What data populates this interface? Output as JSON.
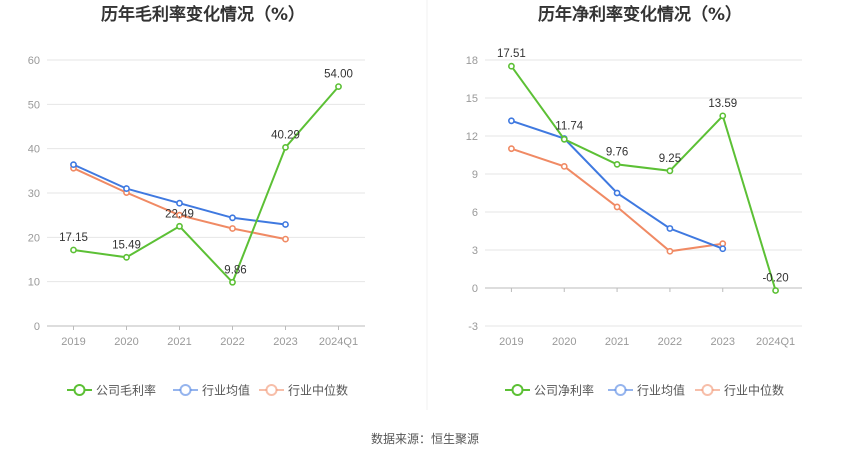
{
  "source": "数据来源：恒生聚源",
  "colors": {
    "company": "#5cc035",
    "industry_avg": "#3f79e0",
    "industry_median": "#f08a64",
    "grid": "#e6e6e6",
    "axis": "#999999"
  },
  "chart_data": [
    {
      "type": "line",
      "title": "历年毛利率变化情况（%）",
      "categories": [
        "2019",
        "2020",
        "2021",
        "2022",
        "2023",
        "2024Q1"
      ],
      "yticks": [
        "0",
        "10",
        "20",
        "30",
        "40",
        "50",
        "60"
      ],
      "ylim": [
        0,
        60
      ],
      "grid": true,
      "legend_position": "bottom",
      "series": [
        {
          "name": "公司毛利率",
          "key": "company",
          "values": [
            17.15,
            15.49,
            22.49,
            9.86,
            40.29,
            54.0
          ],
          "labels": [
            "17.15",
            "15.49",
            "22.49",
            "9.86",
            "40.29",
            "54.00"
          ]
        },
        {
          "name": "行业均值",
          "key": "industry_avg",
          "values": [
            36.4,
            31.0,
            27.7,
            24.4,
            22.9,
            null
          ]
        },
        {
          "name": "行业中位数",
          "key": "industry_median",
          "values": [
            35.6,
            30.1,
            25.0,
            22.0,
            19.6,
            null
          ]
        }
      ]
    },
    {
      "type": "line",
      "title": "历年净利率变化情况（%）",
      "categories": [
        "2019",
        "2020",
        "2021",
        "2022",
        "2023",
        "2024Q1"
      ],
      "yticks": [
        "-3",
        "0",
        "3",
        "6",
        "9",
        "12",
        "15",
        "18"
      ],
      "ylim": [
        -3,
        18
      ],
      "grid": true,
      "legend_position": "bottom",
      "series": [
        {
          "name": "公司净利率",
          "key": "company",
          "values": [
            17.51,
            11.74,
            9.76,
            9.25,
            13.59,
            -0.2
          ],
          "labels": [
            "17.51",
            "11.74",
            "9.76",
            "9.25",
            "13.59",
            "-0.20"
          ]
        },
        {
          "name": "行业均值",
          "key": "industry_avg",
          "values": [
            13.2,
            11.8,
            7.5,
            4.7,
            3.1,
            null
          ]
        },
        {
          "name": "行业中位数",
          "key": "industry_median",
          "values": [
            11.0,
            9.6,
            6.4,
            2.9,
            3.5,
            null
          ]
        }
      ]
    }
  ]
}
